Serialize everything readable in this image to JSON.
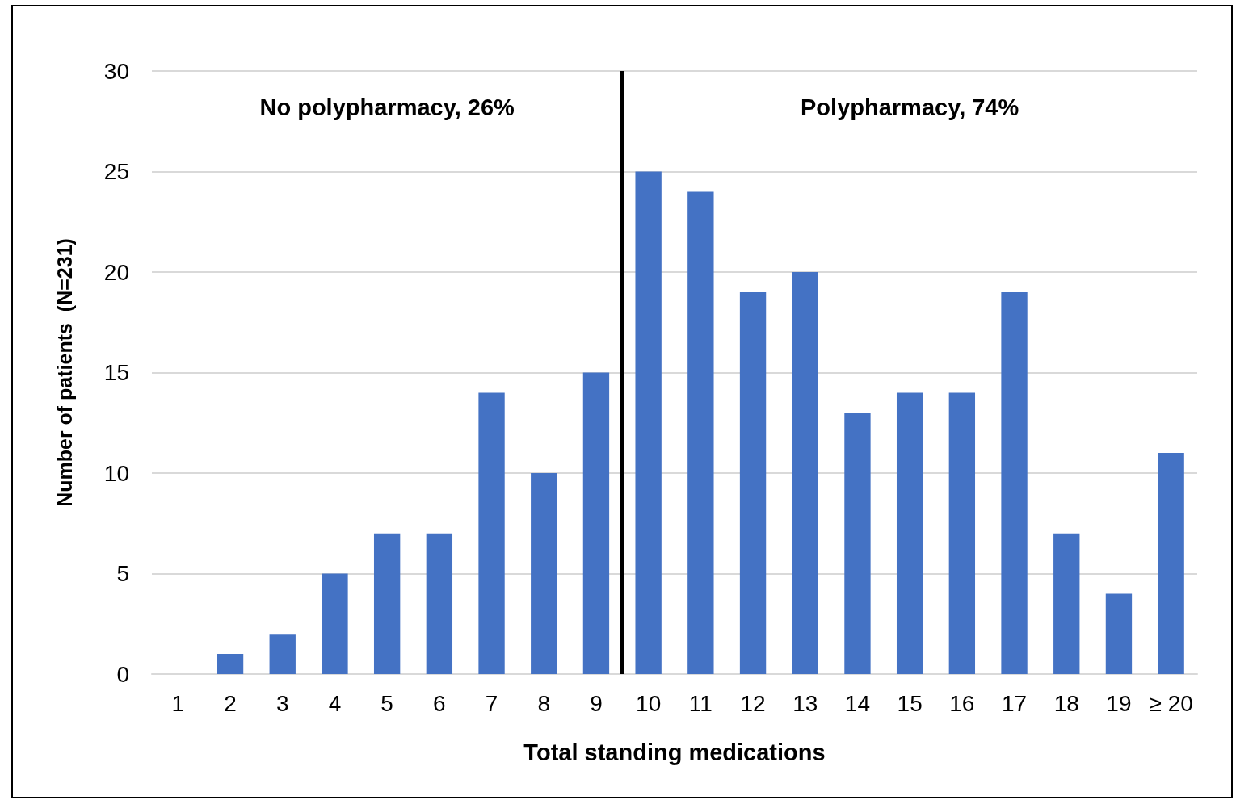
{
  "chart_data": {
    "type": "bar",
    "xlabel": "Total standing medications",
    "ylabel": "Number of patients  (N=231)",
    "x": [
      1,
      2,
      3,
      4,
      5,
      6,
      7,
      8,
      9,
      10,
      11,
      12,
      13,
      14,
      15,
      16,
      17,
      18,
      19,
      20
    ],
    "values": [
      0,
      1,
      2,
      5,
      7,
      7,
      14,
      10,
      15,
      25,
      24,
      19,
      20,
      13,
      14,
      14,
      19,
      7,
      4,
      11
    ],
    "color": "#4472c4",
    "xlim": [
      0.5,
      20.5
    ],
    "xticks": [
      1,
      2,
      3,
      4,
      5,
      6,
      7,
      8,
      9,
      10,
      11,
      12,
      13,
      14,
      15,
      16,
      17,
      18,
      19,
      {
        "value": 20,
        "label": "≥ 20"
      }
    ],
    "ylim": [
      0,
      30
    ],
    "yticks": [
      0,
      5,
      10,
      15,
      20,
      25,
      30
    ],
    "ref_lines": [
      {
        "axis": "x",
        "value": 9.5,
        "color": "#000000"
      }
    ],
    "annotations": [
      "No polypharmacy, 26%",
      "Polypharmacy, 74%"
    ],
    "grid": "y"
  }
}
